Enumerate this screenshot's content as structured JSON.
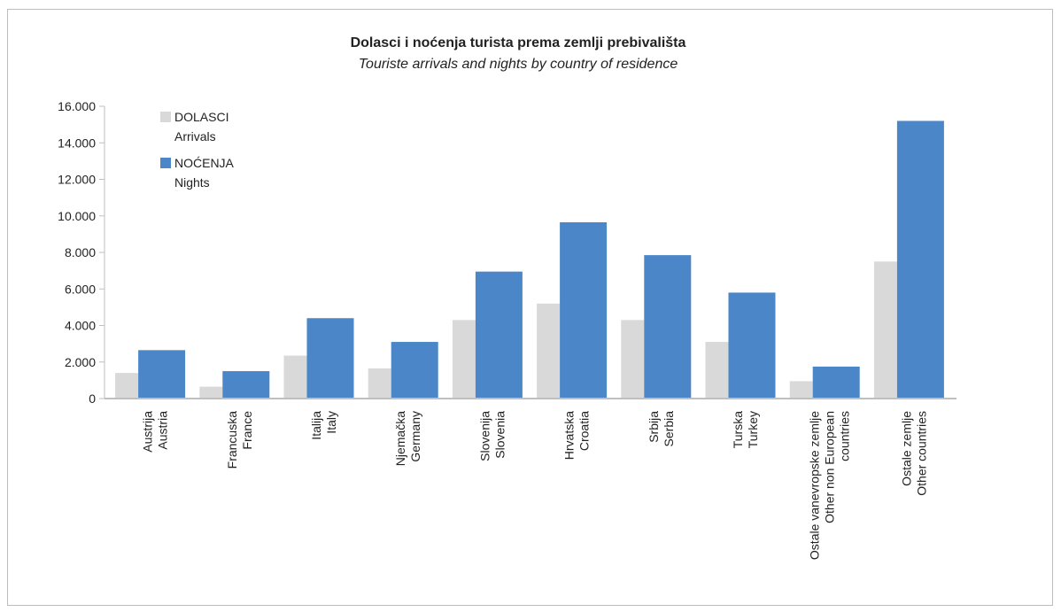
{
  "chart_data": {
    "type": "bar",
    "title": "Dolasci i noćenja turista prema zemlji prebivališta",
    "subtitle": "Touriste arrivals and nights by country of residence",
    "categories": [
      [
        "Austrija",
        "Austria"
      ],
      [
        "Francuska",
        "France"
      ],
      [
        "Italija",
        "Italy"
      ],
      [
        "Njemačka",
        "Germany"
      ],
      [
        "Slovenija",
        "Slovenia"
      ],
      [
        "Hrvatska",
        "Croatia"
      ],
      [
        "Srbija",
        "Serbia"
      ],
      [
        "Turska",
        "Turkey"
      ],
      [
        "Ostale vanevropske zemlje",
        "Other non European",
        "countries"
      ],
      [
        "Ostale zemlje",
        "Other countries"
      ]
    ],
    "series": [
      {
        "name": [
          "DOLASCI",
          "Arrivals"
        ],
        "color": "#d9d9d9",
        "values": [
          1400,
          650,
          2350,
          1650,
          4300,
          5200,
          4300,
          3100,
          950,
          7500
        ]
      },
      {
        "name": [
          "NOĆENJA",
          "Nights"
        ],
        "color": "#4a86c8",
        "values": [
          2650,
          1500,
          4400,
          3100,
          6950,
          9650,
          7850,
          5800,
          1750,
          15200
        ]
      }
    ],
    "ylim": [
      0,
      16000
    ],
    "yticks": [
      0,
      2000,
      4000,
      6000,
      8000,
      10000,
      12000,
      14000,
      16000
    ],
    "ytick_labels": [
      "0",
      "2.000",
      "4.000",
      "6.000",
      "8.000",
      "10.000",
      "12.000",
      "14.000",
      "16.000"
    ],
    "grid": false,
    "legend_position": "top-left"
  }
}
